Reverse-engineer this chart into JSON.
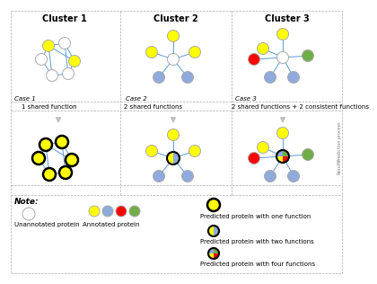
{
  "title_fontsize": 7,
  "label_fontsize": 5,
  "note_fontsize": 5.5,
  "cluster_titles": [
    "Cluster 1",
    "Cluster 2",
    "Cluster 3"
  ],
  "case_labels": [
    "Case 1",
    "Case 2",
    "Case 3"
  ],
  "shared_func_labels": [
    "1 shared function",
    "2 shared functions",
    "2 shared functions + 2 consistent functions"
  ],
  "prediction_process_label": "Prediction process",
  "results_label": "Results",
  "note_label": "Note:",
  "colors": {
    "white": "#FFFFFF",
    "yellow": "#FFFF00",
    "blue_gray": "#8FAADC",
    "red": "#FF0000",
    "green": "#70AD47",
    "black": "#000000",
    "line_color": "#5B9BD5",
    "bg": "#FFFFFF",
    "border": "#AAAAAA",
    "arrow_color": "#BFBFBF",
    "dashed_line": "#AAAAAA",
    "node_edge": "#AAAAAA"
  }
}
